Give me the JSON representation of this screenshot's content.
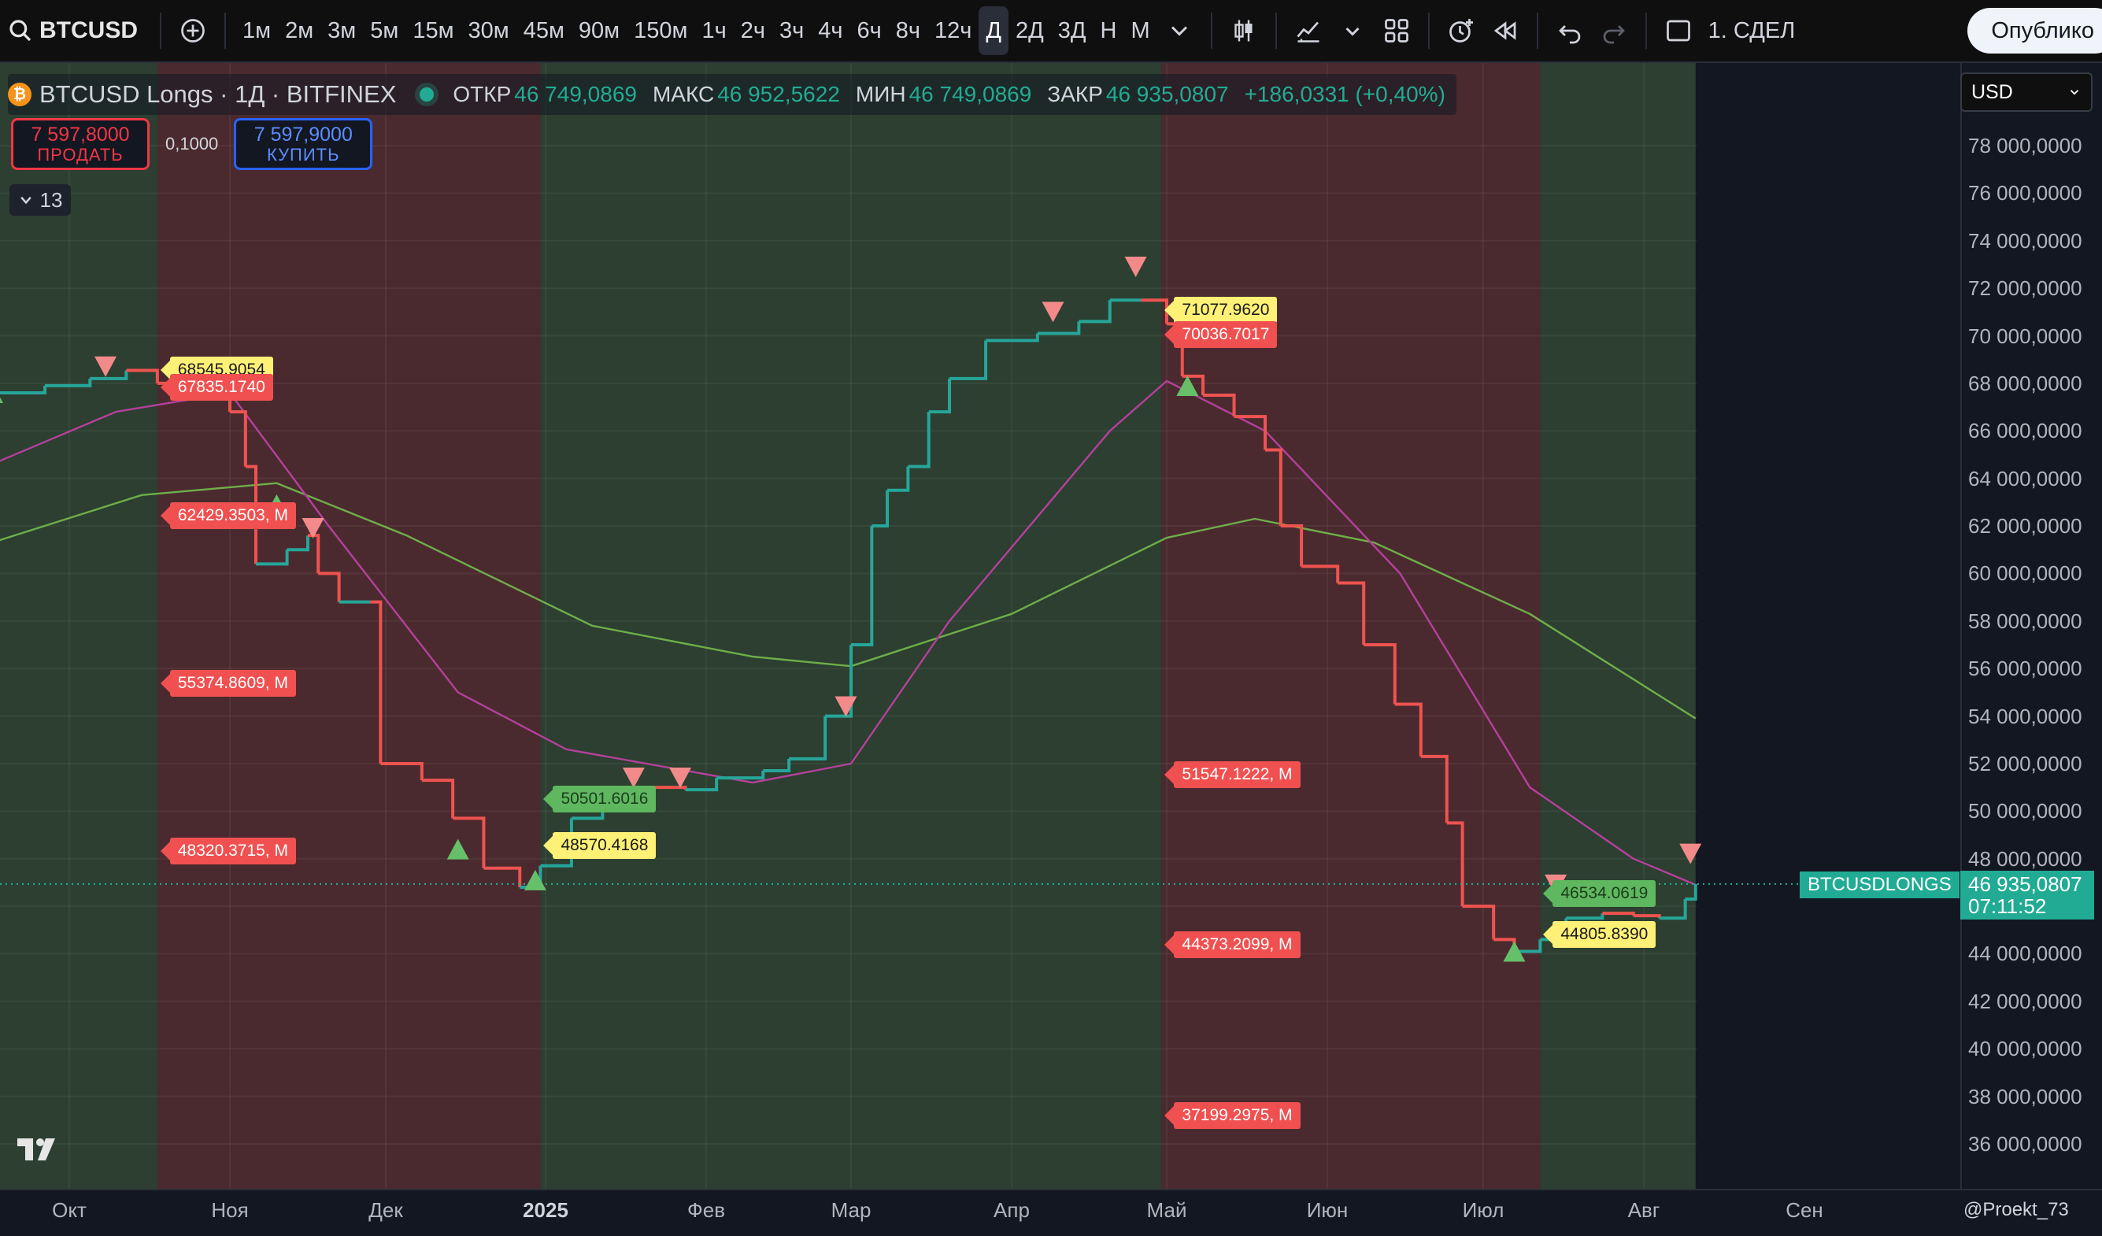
{
  "toolbar": {
    "symbol": "BTCUSD",
    "intervals": [
      "1м",
      "2м",
      "3м",
      "5м",
      "15м",
      "30м",
      "45м",
      "90м",
      "150м",
      "1ч",
      "2ч",
      "3ч",
      "4ч",
      "6ч",
      "8ч",
      "12ч",
      "Д",
      "2Д",
      "3Д",
      "Н",
      "М"
    ],
    "active_interval": "Д",
    "layout_text": "1. СДЕЛ",
    "publish_label": "Опублико",
    "icons": [
      "search-icon",
      "add-compare-icon",
      "chevron-down-icon",
      "candle-type-icon",
      "indicators-icon",
      "layouts-icon",
      "alert-icon",
      "replay-icon",
      "undo-icon",
      "redo-icon",
      "fullscreen-icon"
    ]
  },
  "legend": {
    "title": "BTCUSD Longs · 1Д · BITFINEX",
    "open_label": "ОТКР",
    "open": "46 749,0869",
    "high_label": "МАКС",
    "high": "46 952,5622",
    "low_label": "МИН",
    "low": "46 749,0869",
    "close_label": "ЗАКР",
    "close": "46 935,0807",
    "change": "+186,0331 (+0,40%)"
  },
  "trade": {
    "sell_price": "7 597,8000",
    "sell_label": "ПРОДАТЬ",
    "spread": "0,1000",
    "buy_price": "7 597,9000",
    "buy_label": "КУПИТЬ"
  },
  "collapse_count": "13",
  "price_axis": {
    "currency": "USD",
    "ticks": [
      "78 000,0000",
      "76 000,0000",
      "74 000,0000",
      "72 000,0000",
      "70 000,0000",
      "68 000,0000",
      "66 000,0000",
      "64 000,0000",
      "62 000,0000",
      "60 000,0000",
      "58 000,0000",
      "56 000,0000",
      "54 000,0000",
      "52 000,0000",
      "50 000,0000",
      "48 000,0000",
      "46 000,0000",
      "44 000,0000",
      "42 000,0000",
      "40 000,0000",
      "38 000,0000",
      "36 000,0000"
    ],
    "last_price": "46 935,0807",
    "countdown": "07:11:52",
    "series_label": "BTCUSDLONGS"
  },
  "time_axis": {
    "ticks": [
      "Окт",
      "Ноя",
      "Дек",
      "2025",
      "Фев",
      "Мар",
      "Апр",
      "Май",
      "Июн",
      "Июл",
      "Авг",
      "Сен"
    ]
  },
  "credit": "@Proekt_73",
  "colors": {
    "bull": "#26a69a",
    "bear": "#ef5350",
    "zone_green": "#2c3f30",
    "zone_red": "#4a2a2e",
    "ma_fast": "#b5409c",
    "ma_slow": "#6fae4a",
    "bg": "#131722"
  },
  "chart_labels": [
    {
      "text": "68545.9054",
      "style": "yellow"
    },
    {
      "text": "67835.1740",
      "style": "red"
    },
    {
      "text": "62429.3503, M",
      "style": "red"
    },
    {
      "text": "55374.8609, M",
      "style": "red"
    },
    {
      "text": "48320.3715, M",
      "style": "red"
    },
    {
      "text": "50501.6016",
      "style": "green"
    },
    {
      "text": "48570.4168",
      "style": "yellow"
    },
    {
      "text": "71077.9620",
      "style": "yellow"
    },
    {
      "text": "70036.7017",
      "style": "red"
    },
    {
      "text": "51547.1222, M",
      "style": "red"
    },
    {
      "text": "44373.2099, M",
      "style": "red"
    },
    {
      "text": "37199.2975, M",
      "style": "red"
    },
    {
      "text": "46534.0619",
      "style": "green"
    },
    {
      "text": "44805.8390",
      "style": "yellow"
    }
  ],
  "chart_data": {
    "type": "line",
    "title": "BTCUSD Longs · 1Д · BITFINEX",
    "x_unit": "months, Sep 2024 – Sep 2025",
    "ylim": [
      35000,
      79000
    ],
    "price_series": {
      "name": "BTCUSDLONGS",
      "points": [
        [
          "2024-09-12",
          67600
        ],
        [
          "2024-09-25",
          67900
        ],
        [
          "2024-10-05",
          68200
        ],
        [
          "2024-10-12",
          68545
        ],
        [
          "2024-10-18",
          68000
        ],
        [
          "2024-10-25",
          67600
        ],
        [
          "2024-11-01",
          66800
        ],
        [
          "2024-11-04",
          64500
        ],
        [
          "2024-11-06",
          60400
        ],
        [
          "2024-11-12",
          61000
        ],
        [
          "2024-11-16",
          61600
        ],
        [
          "2024-11-18",
          60000
        ],
        [
          "2024-11-22",
          58800
        ],
        [
          "2024-11-28",
          58800
        ],
        [
          "2024-11-30",
          52000
        ],
        [
          "2024-12-08",
          51300
        ],
        [
          "2024-12-14",
          49700
        ],
        [
          "2024-12-20",
          47600
        ],
        [
          "2024-12-27",
          46800
        ],
        [
          "2024-12-31",
          47700
        ],
        [
          "2025-01-06",
          49700
        ],
        [
          "2025-01-12",
          50300
        ],
        [
          "2025-01-20",
          51000
        ],
        [
          "2025-01-28",
          50900
        ],
        [
          "2025-02-03",
          51400
        ],
        [
          "2025-02-12",
          51700
        ],
        [
          "2025-02-17",
          52200
        ],
        [
          "2025-02-24",
          54000
        ],
        [
          "2025-03-01",
          57000
        ],
        [
          "2025-03-05",
          62000
        ],
        [
          "2025-03-08",
          63500
        ],
        [
          "2025-03-12",
          64500
        ],
        [
          "2025-03-16",
          66800
        ],
        [
          "2025-03-20",
          68200
        ],
        [
          "2025-03-27",
          69800
        ],
        [
          "2025-04-06",
          70100
        ],
        [
          "2025-04-14",
          70600
        ],
        [
          "2025-04-20",
          71500
        ],
        [
          "2025-04-26",
          71500
        ],
        [
          "2025-05-01",
          70500
        ],
        [
          "2025-05-04",
          68300
        ],
        [
          "2025-05-08",
          67500
        ],
        [
          "2025-05-14",
          66600
        ],
        [
          "2025-05-20",
          65200
        ],
        [
          "2025-05-23",
          62000
        ],
        [
          "2025-05-27",
          60300
        ],
        [
          "2025-06-03",
          59600
        ],
        [
          "2025-06-08",
          57000
        ],
        [
          "2025-06-14",
          54500
        ],
        [
          "2025-06-19",
          52300
        ],
        [
          "2025-06-24",
          49500
        ],
        [
          "2025-06-27",
          46000
        ],
        [
          "2025-07-03",
          44600
        ],
        [
          "2025-07-07",
          44100
        ],
        [
          "2025-07-12",
          44600
        ],
        [
          "2025-07-17",
          45500
        ],
        [
          "2025-07-24",
          45700
        ],
        [
          "2025-07-30",
          45600
        ],
        [
          "2025-08-04",
          45500
        ],
        [
          "2025-08-09",
          46300
        ],
        [
          "2025-08-11",
          46935
        ]
      ]
    },
    "ma_slow": {
      "points": [
        [
          "2024-09-12",
          61300
        ],
        [
          "2024-10-15",
          63300
        ],
        [
          "2024-11-10",
          63800
        ],
        [
          "2024-12-05",
          61600
        ],
        [
          "2025-01-10",
          57800
        ],
        [
          "2025-02-10",
          56500
        ],
        [
          "2025-03-01",
          56100
        ],
        [
          "2025-04-01",
          58300
        ],
        [
          "2025-05-01",
          61500
        ],
        [
          "2025-05-18",
          62300
        ],
        [
          "2025-06-10",
          61300
        ],
        [
          "2025-07-10",
          58300
        ],
        [
          "2025-08-11",
          53900
        ]
      ]
    },
    "ma_fast": {
      "points": [
        [
          "2024-09-12",
          64600
        ],
        [
          "2024-10-10",
          66800
        ],
        [
          "2024-11-01",
          67600
        ],
        [
          "2024-11-20",
          62000
        ],
        [
          "2024-12-15",
          55000
        ],
        [
          "2025-01-05",
          52600
        ],
        [
          "2025-02-10",
          51200
        ],
        [
          "2025-03-01",
          52000
        ],
        [
          "2025-03-20",
          58000
        ],
        [
          "2025-04-20",
          66000
        ],
        [
          "2025-05-01",
          68100
        ],
        [
          "2025-05-20",
          66000
        ],
        [
          "2025-06-15",
          60000
        ],
        [
          "2025-07-10",
          51000
        ],
        [
          "2025-07-30",
          48000
        ],
        [
          "2025-08-11",
          46900
        ]
      ]
    },
    "zones": [
      {
        "from": "2024-09-12",
        "to": "2024-10-18",
        "trend": "bull"
      },
      {
        "from": "2024-10-18",
        "to": "2024-12-31",
        "trend": "bear"
      },
      {
        "from": "2024-12-31",
        "to": "2025-04-30",
        "trend": "bull"
      },
      {
        "from": "2025-04-30",
        "to": "2025-07-12",
        "trend": "bear"
      },
      {
        "from": "2025-07-12",
        "to": "2025-08-11",
        "trend": "bull"
      }
    ],
    "grid": true
  }
}
